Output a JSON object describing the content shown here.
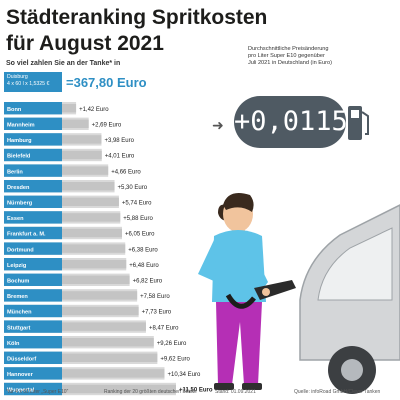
{
  "title_line1": "Städteranking Spritkosten",
  "title_line2": "für August 2021",
  "subhead": "So viel zahlen Sie an der Tanke* in",
  "benchmark": {
    "city": "Duisburg",
    "formula": "4 x 60 l x 1,5325 €",
    "value": "=367,80 Euro"
  },
  "avg_change": {
    "note_line1": "Durchschnittliche Preisänderung",
    "note_line2": "pro Liter Super E10 gegenüber",
    "note_line3": "Juli 2021 in Deutschland (in Euro)",
    "value": "+0,0115"
  },
  "footer": {
    "note": "*für 4 x 60 Liter „Super E10“",
    "ranking": "Ranking der 20 größten deutschen Städte",
    "date": "Stand: 01.09.2021",
    "source": "Quelle: infoRoad GmbH/Clever Tanken"
  },
  "colors": {
    "bar": "#2e8fc4",
    "row_bg": "#d9d9d9",
    "display_bg": "#4f5a63"
  },
  "chart_data": {
    "type": "bar",
    "orientation": "horizontal",
    "categories": [
      "Bonn",
      "Mannheim",
      "Hamburg",
      "Bielefeld",
      "Berlin",
      "Dresden",
      "Nürnberg",
      "Essen",
      "Frankfurt a. M.",
      "Dortmund",
      "Leipzig",
      "Bochum",
      "Bremen",
      "München",
      "Stuttgart",
      "Köln",
      "Düsseldorf",
      "Hannover",
      "Wuppertal"
    ],
    "values": [
      1.42,
      2.69,
      3.98,
      4.01,
      4.66,
      5.3,
      5.74,
      5.88,
      6.05,
      6.38,
      6.48,
      6.82,
      7.58,
      7.73,
      8.47,
      9.26,
      9.62,
      10.34,
      11.5
    ],
    "labels": [
      "+1,42 Euro",
      "+2,69 Euro",
      "+3,98 Euro",
      "+4,01 Euro",
      "+4,66 Euro",
      "+5,30 Euro",
      "+5,74 Euro",
      "+5,88 Euro",
      "+6,05 Euro",
      "+6,38 Euro",
      "+6,48 Euro",
      "+6,82 Euro",
      "+7,58 Euro",
      "+7,73 Euro",
      "+8,47 Euro",
      "+9,26 Euro",
      "+9,62 Euro",
      "+10,34 Euro",
      "+11,50 Euro"
    ],
    "unit": "Euro"
  }
}
